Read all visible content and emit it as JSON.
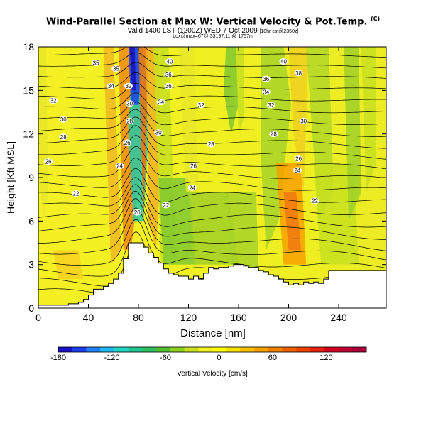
{
  "header": {
    "title": "Wind-Parallel Section at Max W: Vertical Velocity & Pot.Temp.",
    "copyright": "(C)",
    "subtitle_main": "Valid 1400 LST (1200Z) WED 7 Oct 2009",
    "subtitle_small": "[18hr cst@2350z]",
    "line3": "box@max=67@ 33197,11 @ 1757m"
  },
  "chart_data": {
    "type": "heatmap",
    "title": "Wind-Parallel Section at Max W: Vertical Velocity & Pot.Temp.",
    "xlabel": "Distance [nm]",
    "ylabel": "Height [Kft MSL]",
    "xlim": [
      0,
      278
    ],
    "ylim": [
      0,
      18
    ],
    "x_ticks": [
      0,
      40,
      80,
      120,
      160,
      200,
      240
    ],
    "y_ticks": [
      0,
      3,
      6,
      9,
      12,
      15,
      18
    ],
    "x_tick_labels": [
      "0",
      "40",
      "80",
      "120",
      "160",
      "200",
      "240"
    ],
    "y_tick_labels": [
      "0",
      "3",
      "6",
      "9",
      12,
      "15",
      "18"
    ],
    "colorbar": {
      "label": "Vertical Velocity [cm/s]",
      "min": -180,
      "max": 150,
      "step": 15,
      "tick_values": [
        -180,
        -120,
        -60,
        0,
        60,
        120
      ],
      "tick_labels": [
        "-180",
        "-120",
        "-60",
        "0",
        "60",
        "120"
      ],
      "colors": [
        "#1a10c8",
        "#1c3cf0",
        "#2080f8",
        "#20b8f0",
        "#20d8c0",
        "#20c890",
        "#30c060",
        "#50c030",
        "#90d020",
        "#c8e020",
        "#f0f020",
        "#ffff00",
        "#f8e000",
        "#f8c000",
        "#f8a000",
        "#f08000",
        "#f06000",
        "#f04000",
        "#e82010",
        "#d80020",
        "#c00030",
        "#a80038"
      ]
    },
    "contour_labels": [
      {
        "x": 46,
        "y": 16.9,
        "label": "35"
      },
      {
        "x": 62,
        "y": 16.5,
        "label": "35"
      },
      {
        "x": 105,
        "y": 17.0,
        "label": "40"
      },
      {
        "x": 196,
        "y": 17.0,
        "label": "40"
      },
      {
        "x": 12,
        "y": 14.3,
        "label": "32"
      },
      {
        "x": 20,
        "y": 13.0,
        "label": "30"
      },
      {
        "x": 20,
        "y": 11.8,
        "label": "28"
      },
      {
        "x": 8,
        "y": 10.1,
        "label": "26"
      },
      {
        "x": 58,
        "y": 15.3,
        "label": "34"
      },
      {
        "x": 72,
        "y": 15.3,
        "label": "32"
      },
      {
        "x": 73,
        "y": 14.1,
        "label": "30"
      },
      {
        "x": 73,
        "y": 12.9,
        "label": "28"
      },
      {
        "x": 71,
        "y": 11.4,
        "label": "26"
      },
      {
        "x": 65,
        "y": 9.8,
        "label": "24"
      },
      {
        "x": 30,
        "y": 7.9,
        "label": "22"
      },
      {
        "x": 79,
        "y": 6.6,
        "label": "20"
      },
      {
        "x": 104,
        "y": 16.1,
        "label": "36"
      },
      {
        "x": 104,
        "y": 15.3,
        "label": "36"
      },
      {
        "x": 98,
        "y": 14.2,
        "label": "34"
      },
      {
        "x": 130,
        "y": 14.0,
        "label": "32"
      },
      {
        "x": 96,
        "y": 12.1,
        "label": "30"
      },
      {
        "x": 138,
        "y": 11.3,
        "label": "28"
      },
      {
        "x": 124,
        "y": 9.8,
        "label": "26"
      },
      {
        "x": 123,
        "y": 8.3,
        "label": "24"
      },
      {
        "x": 102,
        "y": 7.1,
        "label": "22"
      },
      {
        "x": 208,
        "y": 16.2,
        "label": "38"
      },
      {
        "x": 182,
        "y": 15.8,
        "label": "36"
      },
      {
        "x": 182,
        "y": 14.9,
        "label": "34"
      },
      {
        "x": 186,
        "y": 14.0,
        "label": "32"
      },
      {
        "x": 212,
        "y": 12.9,
        "label": "30"
      },
      {
        "x": 188,
        "y": 12.0,
        "label": "28"
      },
      {
        "x": 208,
        "y": 10.3,
        "label": "26"
      },
      {
        "x": 207,
        "y": 9.5,
        "label": "24"
      },
      {
        "x": 221,
        "y": 7.4,
        "label": "22"
      }
    ],
    "terrain_profile": {
      "x": [
        0,
        8,
        16,
        24,
        32,
        36,
        40,
        44,
        52,
        56,
        60,
        64,
        68,
        72,
        76,
        80,
        84,
        88,
        92,
        96,
        100,
        104,
        108,
        112,
        116,
        120,
        124,
        128,
        132,
        136,
        140,
        144,
        148,
        152,
        156,
        160,
        164,
        168,
        172,
        176,
        180,
        184,
        188,
        192,
        196,
        200,
        204,
        208,
        212,
        216,
        220,
        224,
        228,
        232,
        240,
        256,
        278
      ],
      "height": [
        0.2,
        0.2,
        0.2,
        0.3,
        0.4,
        0.6,
        0.9,
        1.3,
        1.5,
        1.7,
        2.0,
        2.4,
        3.4,
        4.5,
        4.5,
        4.5,
        4.2,
        3.8,
        3.5,
        3.1,
        2.7,
        2.4,
        2.3,
        2.2,
        2.2,
        2.0,
        2.2,
        2.0,
        2.4,
        2.8,
        2.7,
        2.8,
        2.8,
        2.9,
        3.0,
        3.0,
        2.9,
        2.8,
        2.8,
        2.6,
        2.5,
        2.3,
        2.2,
        2.0,
        1.8,
        1.6,
        1.7,
        1.6,
        1.8,
        1.7,
        1.8,
        1.7,
        2.0,
        2.6,
        2.6,
        2.6,
        2.6
      ]
    }
  }
}
